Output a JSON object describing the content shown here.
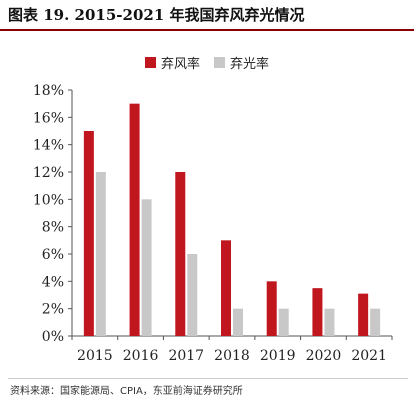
{
  "title": "图表 19. 2015-2021 年我国弃风弃光情况",
  "source": "资料来源：国家能源局、CPIA，东亚前海证券研究所",
  "colors": {
    "series1": "#c0161e",
    "series2": "#c8c8c8",
    "title_rule": "#8b0000"
  },
  "chart_data": {
    "type": "bar",
    "categories": [
      "2015",
      "2016",
      "2017",
      "2018",
      "2019",
      "2020",
      "2021"
    ],
    "series": [
      {
        "name": "弃风率",
        "values": [
          15,
          17,
          12,
          7,
          4,
          3.5,
          3.1
        ]
      },
      {
        "name": "弃光率",
        "values": [
          12,
          10,
          6,
          2,
          2,
          2,
          2
        ]
      }
    ],
    "y_ticks": [
      "0%",
      "2%",
      "4%",
      "6%",
      "8%",
      "10%",
      "12%",
      "14%",
      "16%",
      "18%"
    ],
    "ylim": [
      0,
      18
    ],
    "legend": "top-center",
    "grid": false
  }
}
